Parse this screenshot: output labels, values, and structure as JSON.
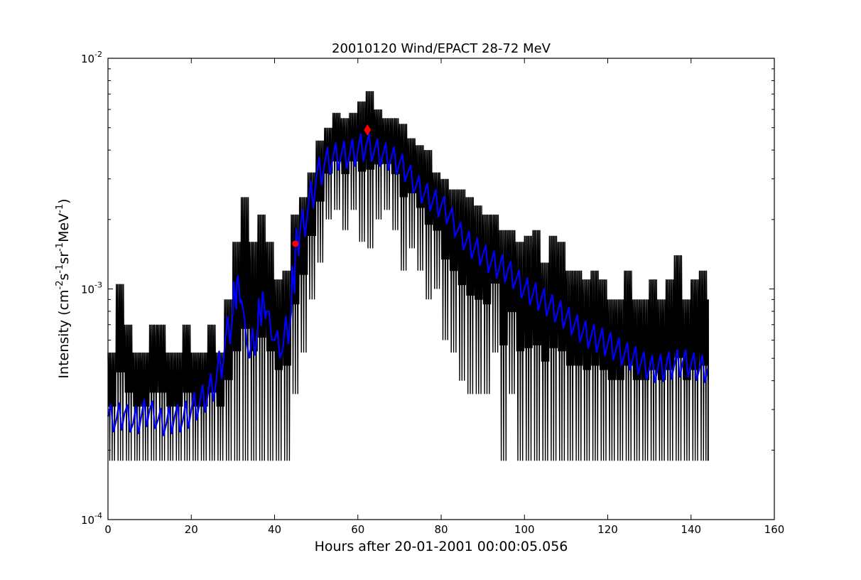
{
  "chart_data": {
    "type": "line",
    "title": "20010120 Wind/EPACT 28-72 MeV",
    "xlabel": "Hours after 20-01-2001 00:00:05.056",
    "ylabel_main": "Intensity (cm",
    "ylabel_parts": [
      "-2",
      "s",
      "-1",
      "sr",
      "-1",
      "MeV",
      "-1",
      ")"
    ],
    "xlim": [
      0,
      160
    ],
    "ylim": [
      0.0001,
      0.01
    ],
    "yscale": "log",
    "grid": false,
    "x_ticks": [
      0,
      20,
      40,
      60,
      80,
      100,
      120,
      140,
      160
    ],
    "x_tick_labels": [
      "0",
      "20",
      "40",
      "60",
      "80",
      "100",
      "120",
      "140",
      "160"
    ],
    "y_ticks": [
      0.0001,
      0.001,
      0.01
    ],
    "y_tick_labels": [
      {
        "base": "10",
        "exp": "-4"
      },
      {
        "base": "10",
        "exp": "-3"
      },
      {
        "base": "10",
        "exp": "-2"
      }
    ],
    "colors": {
      "raw": "#000000",
      "smoothed": "#0000ff",
      "markers": "#ff0000"
    },
    "raw_series": {
      "color": "#000000",
      "x": [
        0,
        2,
        4,
        6,
        8,
        10,
        12,
        14,
        16,
        18,
        20,
        22,
        24,
        26,
        28,
        30,
        32,
        34,
        36,
        38,
        40,
        42,
        44,
        46,
        48,
        50,
        52,
        54,
        56,
        58,
        60,
        62,
        64,
        66,
        68,
        70,
        72,
        74,
        76,
        78,
        80,
        82,
        84,
        86,
        88,
        90,
        92,
        94,
        96,
        98,
        100,
        102,
        104,
        106,
        108,
        110,
        112,
        114,
        116,
        118,
        120,
        122,
        124,
        126,
        128,
        130,
        132,
        134,
        136,
        138,
        140,
        142,
        144
      ],
      "low": [
        0.00018,
        0.00018,
        0.00018,
        0.00018,
        0.00018,
        0.00018,
        0.00018,
        0.00018,
        0.00018,
        0.00018,
        0.00018,
        0.00018,
        0.00018,
        0.00018,
        0.00018,
        0.00018,
        0.00018,
        0.00018,
        0.00018,
        0.00018,
        0.00018,
        0.00018,
        0.00035,
        0.00053,
        0.0009,
        0.0013,
        0.002,
        0.0022,
        0.0018,
        0.0022,
        0.0016,
        0.0015,
        0.002,
        0.0022,
        0.0018,
        0.0012,
        0.0015,
        0.0012,
        0.0009,
        0.001,
        0.0006,
        0.00053,
        0.0004,
        0.00035,
        0.00035,
        0.00035,
        0.00053,
        0.00018,
        0.00035,
        0.00018,
        0.00018,
        0.00018,
        0.00018,
        0.00018,
        0.00018,
        0.00018,
        0.00018,
        0.00018,
        0.00018,
        0.00018,
        0.00018,
        0.00018,
        0.00018,
        0.00018,
        0.00018,
        0.00018,
        0.00018,
        0.00018,
        0.00018,
        0.00018,
        0.00018,
        0.00018,
        0.00018
      ],
      "high": [
        0.00053,
        0.00105,
        0.0007,
        0.00053,
        0.00053,
        0.0007,
        0.0007,
        0.00053,
        0.00053,
        0.0007,
        0.00053,
        0.00053,
        0.0007,
        0.00053,
        0.0009,
        0.0016,
        0.0025,
        0.0016,
        0.0021,
        0.0016,
        0.0011,
        0.0012,
        0.0021,
        0.0025,
        0.0032,
        0.0044,
        0.005,
        0.0058,
        0.0055,
        0.0058,
        0.0065,
        0.0072,
        0.006,
        0.0055,
        0.0055,
        0.0052,
        0.0045,
        0.0042,
        0.004,
        0.0032,
        0.003,
        0.0027,
        0.0027,
        0.0025,
        0.0023,
        0.0021,
        0.0021,
        0.0018,
        0.0018,
        0.0016,
        0.0017,
        0.0018,
        0.0013,
        0.0017,
        0.0016,
        0.0012,
        0.0012,
        0.0011,
        0.0012,
        0.0011,
        0.0009,
        0.0009,
        0.0012,
        0.0009,
        0.0009,
        0.0011,
        0.0009,
        0.0011,
        0.0014,
        0.0009,
        0.0011,
        0.0012,
        0.0009
      ]
    },
    "smoothed_series": {
      "color": "#0000ff",
      "x": [
        0,
        2,
        4,
        6,
        8,
        10,
        12,
        14,
        16,
        18,
        20,
        22,
        24,
        26,
        28,
        30,
        31,
        32,
        34,
        36,
        37,
        38,
        40,
        42,
        44,
        45,
        46,
        48,
        50,
        52,
        54,
        56,
        58,
        60,
        62,
        64,
        66,
        68,
        70,
        72,
        74,
        76,
        78,
        80,
        82,
        84,
        86,
        88,
        90,
        92,
        94,
        96,
        98,
        100,
        102,
        104,
        106,
        108,
        110,
        112,
        114,
        116,
        118,
        120,
        122,
        124,
        126,
        128,
        130,
        132,
        134,
        136,
        138,
        140,
        142,
        144
      ],
      "y": [
        0.00028,
        0.00027,
        0.00029,
        0.00026,
        0.00028,
        0.0003,
        0.00027,
        0.00026,
        0.00028,
        0.00027,
        0.0003,
        0.00032,
        0.00035,
        0.0004,
        0.00055,
        0.0008,
        0.0011,
        0.0009,
        0.0005,
        0.0007,
        0.0009,
        0.0008,
        0.0006,
        0.00055,
        0.0008,
        0.0015,
        0.0017,
        0.0022,
        0.003,
        0.0035,
        0.0037,
        0.0038,
        0.0038,
        0.004,
        0.0042,
        0.004,
        0.0038,
        0.0037,
        0.0035,
        0.0032,
        0.0028,
        0.0026,
        0.0024,
        0.0023,
        0.0021,
        0.0018,
        0.0016,
        0.0015,
        0.0014,
        0.0013,
        0.00125,
        0.0012,
        0.0011,
        0.001,
        0.00095,
        0.0009,
        0.00085,
        0.0008,
        0.00075,
        0.0007,
        0.00065,
        0.00062,
        0.0006,
        0.00058,
        0.00055,
        0.00052,
        0.0005,
        0.00048,
        0.00045,
        0.00045,
        0.00046,
        0.00047,
        0.00048,
        0.00047,
        0.00045,
        0.00045
      ]
    },
    "markers": [
      {
        "shape": "circle",
        "x": 45.0,
        "y": 0.00157,
        "color": "#ff0000"
      },
      {
        "shape": "diamond",
        "x": 62.3,
        "y": 0.00489,
        "color": "#ff0000"
      }
    ]
  }
}
